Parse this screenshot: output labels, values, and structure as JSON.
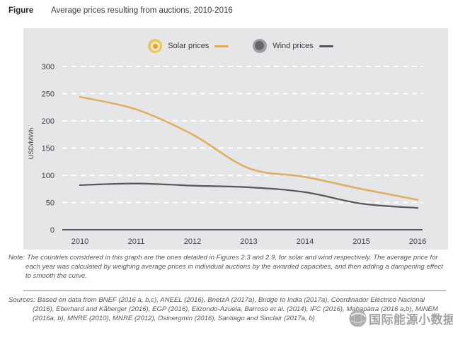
{
  "header": {
    "label": "Figure",
    "title": "Average prices resulting from auctions, 2010-2016"
  },
  "chart_data": {
    "type": "line",
    "title": "Average prices resulting from auctions, 2010-2016",
    "x": [
      2010,
      2011,
      2012,
      2013,
      2014,
      2015,
      2016
    ],
    "series": [
      {
        "name": "Solar prices",
        "color": "#dfaf62",
        "values": [
          244,
          221,
          175,
          113,
          97,
          75,
          55
        ]
      },
      {
        "name": "Wind prices",
        "color": "#54565a",
        "values": [
          82,
          85,
          81,
          78,
          69,
          48,
          40
        ]
      }
    ],
    "xlabel": "",
    "ylabel": "USD/MWh",
    "ylim": [
      0,
      300
    ],
    "yticks": [
      0,
      50,
      100,
      150,
      200,
      250,
      300
    ],
    "grid": "horizontal-white-dashed",
    "legend_position": "top-center",
    "plot_background": "#e5e6e7",
    "axis_color": "#54565a"
  },
  "note": {
    "label": "Note:",
    "text": "The countries considered in this graph are the ones detailed in Figures 2.3 and 2.9, for solar and wind respectively. The average price for each year was calculated by weighing average prices in individual auctions by the awarded capacities, and then adding a dampening effect to smooth the curve."
  },
  "sources": {
    "label": "Sources:",
    "text": "Based on data from BNEF (2016 a, b,c), ANEEL (2016), BnetzA (2017a), Bridge to India (2017a), Coordinador Eléctrico Nacional (2016), Eberhard and Kåberger (2016), EGP (2016), Elizondo-Azuela, Barroso et al. (2014), IFC (2016), Mahapatra (2016 a,b), MINEM (2016a, b), MNRE (2010), MNRE (2012), Osinergmin (2016), Santiago and Sinclair (2017a, b)"
  },
  "watermark": {
    "text": "国际能源小数据"
  }
}
